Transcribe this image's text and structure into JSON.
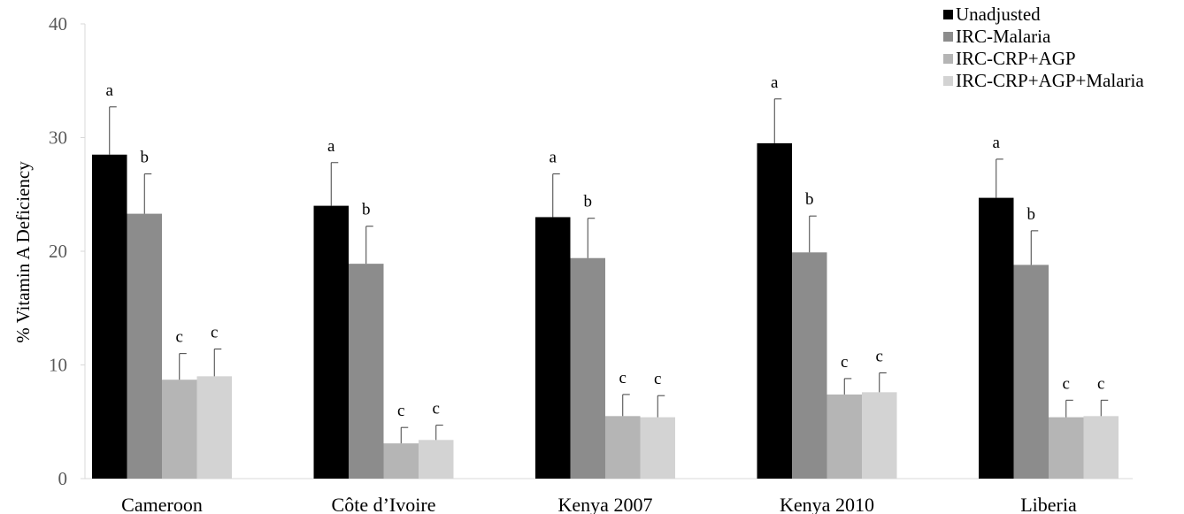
{
  "chart_data": {
    "type": "bar",
    "title": "",
    "xlabel": "",
    "ylabel": "% Vitamin A Deficiency",
    "ylim": [
      0,
      40
    ],
    "yticks": [
      0,
      10,
      20,
      30,
      40
    ],
    "grid": false,
    "legend_position": "top-right",
    "categories": [
      "Cameroon",
      "Côte d’Ivoire",
      "Kenya 2007",
      "Kenya 2010",
      "Liberia"
    ],
    "series": [
      {
        "name": "Unadjusted",
        "color": "#000000",
        "values": [
          28.5,
          24.0,
          23.0,
          29.5,
          24.7
        ],
        "error_upper": [
          32.7,
          27.8,
          26.8,
          33.4,
          28.1
        ],
        "labels": [
          "a",
          "a",
          "a",
          "a",
          "a"
        ]
      },
      {
        "name": "IRC-Malaria",
        "color": "#8c8c8c",
        "values": [
          23.3,
          18.9,
          19.4,
          19.9,
          18.8
        ],
        "error_upper": [
          26.8,
          22.2,
          22.9,
          23.1,
          21.8
        ],
        "labels": [
          "b",
          "b",
          "b",
          "b",
          "b"
        ]
      },
      {
        "name": "IRC-CRP+AGP",
        "color": "#b5b5b5",
        "values": [
          8.7,
          3.1,
          5.5,
          7.4,
          5.4
        ],
        "error_upper": [
          11.0,
          4.5,
          7.4,
          8.8,
          6.9
        ],
        "labels": [
          "c",
          "c",
          "c",
          "c",
          "c"
        ]
      },
      {
        "name": "IRC-CRP+AGP+Malaria",
        "color": "#d3d3d3",
        "values": [
          9.0,
          3.4,
          5.4,
          7.6,
          5.5
        ],
        "error_upper": [
          11.4,
          4.7,
          7.3,
          9.3,
          6.9
        ],
        "labels": [
          "c",
          "c",
          "c",
          "c",
          "c"
        ]
      }
    ]
  }
}
